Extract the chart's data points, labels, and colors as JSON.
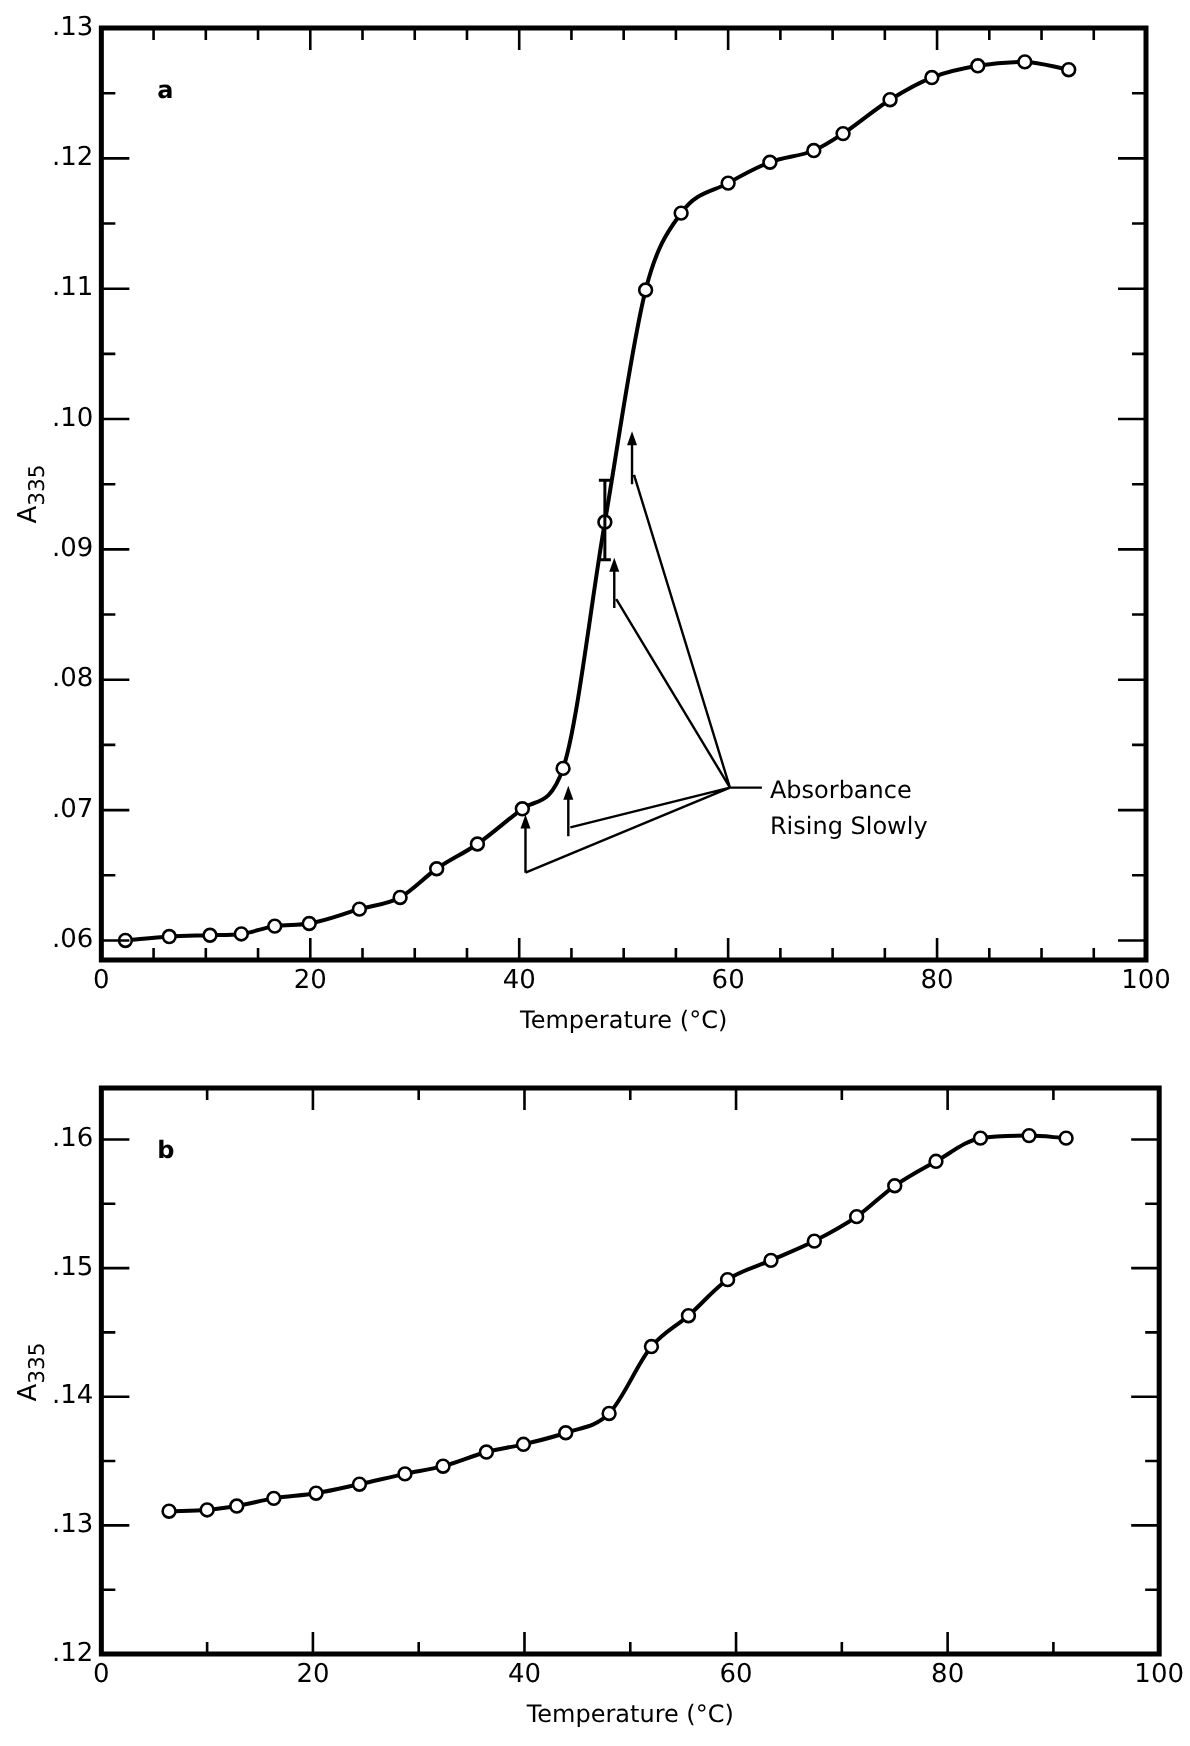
{
  "chart_data": [
    {
      "type": "line",
      "title": "a",
      "xlabel": "Temperature (°C)",
      "ylabel": "A$_{335}$",
      "marker": "circle",
      "line_style": "solid",
      "legend": false,
      "grid": false,
      "x": [
        2.3,
        6.5,
        10.4,
        13.4,
        16.6,
        19.9,
        24.7,
        28.6,
        32.1,
        36.0,
        40.3,
        44.2,
        48.2,
        52.1,
        55.5,
        60.0,
        64.0,
        68.2,
        71.0,
        75.5,
        79.5,
        83.9,
        88.4,
        92.6
      ],
      "series": [
        {
          "color": "#000000",
          "values": [
            0.06,
            0.0603,
            0.0604,
            0.0605,
            0.0611,
            0.0613,
            0.0624,
            0.0633,
            0.0655,
            0.0674,
            0.0701,
            0.0732,
            0.0921,
            0.1099,
            0.1158,
            0.1181,
            0.1197,
            0.1206,
            0.1219,
            0.1245,
            0.1262,
            0.1271,
            0.1274,
            0.1268
          ],
          "errors": [
            null,
            null,
            null,
            null,
            null,
            null,
            null,
            null,
            null,
            null,
            null,
            null,
            [
              0.0892,
              0.0953
            ],
            null,
            null,
            null,
            null,
            null,
            null,
            null,
            null,
            null,
            null,
            null
          ]
        }
      ],
      "xlim": [
        0,
        100
      ],
      "ylim": [
        0.0585,
        0.13
      ],
      "xticks": [
        0,
        {
          "value": 5,
          "label": null
        },
        {
          "value": 10,
          "label": null
        },
        {
          "value": 15,
          "label": null
        },
        20,
        {
          "value": 25,
          "label": null
        },
        {
          "value": 30,
          "label": null
        },
        {
          "value": 35,
          "label": null
        },
        40,
        {
          "value": 45,
          "label": null
        },
        {
          "value": 50,
          "label": null
        },
        {
          "value": 55,
          "label": null
        },
        60,
        {
          "value": 65,
          "label": null
        },
        {
          "value": 70,
          "label": null
        },
        {
          "value": 75,
          "label": null
        },
        80,
        {
          "value": 85,
          "label": null
        },
        {
          "value": 90,
          "label": null
        },
        {
          "value": 95,
          "label": null
        },
        100
      ],
      "yticks": [
        {
          "value": 0.06,
          "label": ".06"
        },
        {
          "value": 0.065,
          "label": null
        },
        {
          "value": 0.07,
          "label": ".07"
        },
        {
          "value": 0.075,
          "label": null
        },
        {
          "value": 0.08,
          "label": ".08"
        },
        {
          "value": 0.085,
          "label": null
        },
        {
          "value": 0.09,
          "label": ".09"
        },
        {
          "value": 0.095,
          "label": null
        },
        {
          "value": 0.1,
          "label": ".10"
        },
        {
          "value": 0.105,
          "label": null
        },
        {
          "value": 0.11,
          "label": ".11"
        },
        {
          "value": 0.115,
          "label": null
        },
        {
          "value": 0.12,
          "label": ".12"
        },
        {
          "value": 0.125,
          "label": null
        },
        {
          "value": 0.13,
          "label": ".13"
        }
      ],
      "annotations": [
        "Absorbance Rising Slowly"
      ]
    },
    {
      "type": "line",
      "title": "b",
      "xlabel": "Temperature (°C)",
      "ylabel": "A$_{335}$",
      "marker": "circle",
      "line_style": "solid",
      "legend": false,
      "grid": false,
      "x": [
        6.4,
        10.0,
        12.8,
        16.3,
        20.3,
        24.4,
        28.7,
        32.3,
        36.4,
        39.9,
        43.9,
        48.0,
        52.0,
        55.5,
        59.2,
        63.3,
        67.4,
        71.4,
        75.0,
        78.9,
        83.1,
        87.7,
        91.2
      ],
      "series": [
        {
          "color": "#000000",
          "values": [
            0.1311,
            0.1312,
            0.1315,
            0.1321,
            0.1325,
            0.1332,
            0.134,
            0.1346,
            0.1357,
            0.1363,
            0.1372,
            0.1387,
            0.1439,
            0.1463,
            0.1491,
            0.1506,
            0.1521,
            0.154,
            0.1564,
            0.1583,
            0.1601,
            0.1603,
            0.1601
          ]
        }
      ],
      "xlim": [
        0,
        100
      ],
      "ylim": [
        0.12,
        0.164
      ],
      "xticks": [
        0,
        {
          "value": 10,
          "label": null
        },
        20,
        {
          "value": 30,
          "label": null
        },
        40,
        {
          "value": 50,
          "label": null
        },
        60,
        {
          "value": 70,
          "label": null
        },
        80,
        {
          "value": 90,
          "label": null
        },
        100
      ],
      "yticks": [
        {
          "value": 0.12,
          "label": ".12"
        },
        {
          "value": 0.125,
          "label": null
        },
        {
          "value": 0.13,
          "label": ".13"
        },
        {
          "value": 0.135,
          "label": null
        },
        {
          "value": 0.14,
          "label": ".14"
        },
        {
          "value": 0.145,
          "label": null
        },
        {
          "value": 0.15,
          "label": ".15"
        },
        {
          "value": 0.155,
          "label": null
        },
        {
          "value": 0.16,
          "label": ".16"
        }
      ]
    }
  ]
}
